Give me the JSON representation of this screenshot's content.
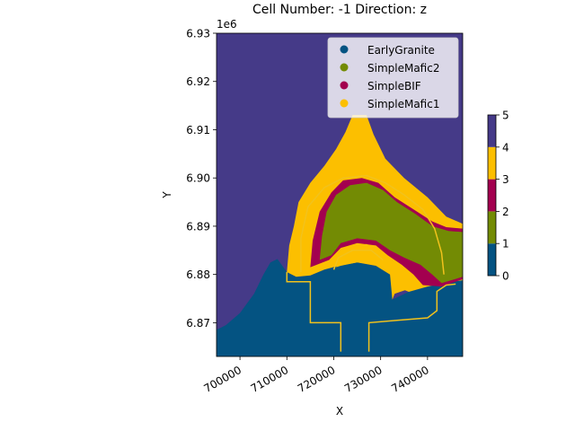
{
  "chart_data": {
    "type": "heatmap",
    "title": "Cell Number: -1 Direction: z",
    "xlabel": "X",
    "ylabel": "Y",
    "y_offset_label": "1e6",
    "xlim": [
      695000,
      747500
    ],
    "ylim": [
      6863000,
      6930000
    ],
    "x_ticks": [
      {
        "value": 700000,
        "label": "700000"
      },
      {
        "value": 710000,
        "label": "710000"
      },
      {
        "value": 720000,
        "label": "720000"
      },
      {
        "value": 730000,
        "label": "730000"
      },
      {
        "value": 740000,
        "label": "740000"
      }
    ],
    "y_ticks": [
      {
        "value": 6870000,
        "label": "6.87"
      },
      {
        "value": 6880000,
        "label": "6.88"
      },
      {
        "value": 6890000,
        "label": "6.89"
      },
      {
        "value": 6900000,
        "label": "6.90"
      },
      {
        "value": 6910000,
        "label": "6.91"
      },
      {
        "value": 6920000,
        "label": "6.92"
      },
      {
        "value": 6930000,
        "label": "6.93"
      }
    ],
    "legend_position": "top-right",
    "legend": [
      {
        "name": "EarlyGranite",
        "color": "#045382"
      },
      {
        "name": "SimpleMafic2",
        "color": "#738b04"
      },
      {
        "name": "SimpleBIF",
        "color": "#a3004f"
      },
      {
        "name": "SimpleMafic1",
        "color": "#fcbf00"
      }
    ],
    "background_unit_color": "#453a88",
    "colorbar": {
      "range": [
        0,
        5
      ],
      "ticks": [
        "0",
        "1",
        "2",
        "3",
        "4",
        "5"
      ],
      "bands": [
        {
          "from": 0,
          "to": 1,
          "color": "#045382"
        },
        {
          "from": 1,
          "to": 2,
          "color": "#738b04"
        },
        {
          "from": 2,
          "to": 3,
          "color": "#a3004f"
        },
        {
          "from": 3,
          "to": 4,
          "color": "#fcbf00"
        },
        {
          "from": 4,
          "to": 5,
          "color": "#453a88"
        }
      ]
    },
    "regions": [
      {
        "name": "EarlyGranite",
        "color": "#045382",
        "points": [
          [
            695000,
            6863000
          ],
          [
            747500,
            6863000
          ],
          [
            747500,
            6878800
          ],
          [
            744000,
            6878300
          ],
          [
            740000,
            6877500
          ],
          [
            736000,
            6876400
          ],
          [
            732500,
            6874800
          ],
          [
            732000,
            6880000
          ],
          [
            729000,
            6881800
          ],
          [
            725000,
            6882500
          ],
          [
            721000,
            6881800
          ],
          [
            718000,
            6881000
          ],
          [
            715000,
            6879800
          ],
          [
            712000,
            6879500
          ],
          [
            710000,
            6880500
          ],
          [
            708000,
            6883200
          ],
          [
            706500,
            6882500
          ],
          [
            705000,
            6880000
          ],
          [
            703000,
            6876000
          ],
          [
            700000,
            6872000
          ],
          [
            697000,
            6869500
          ],
          [
            695000,
            6868500
          ]
        ]
      },
      {
        "name": "SimpleMafic1",
        "color": "#fcbf00",
        "points": [
          [
            710000,
            6880500
          ],
          [
            710500,
            6886000
          ],
          [
            711500,
            6890000
          ],
          [
            712500,
            6895000
          ],
          [
            715000,
            6899000
          ],
          [
            718000,
            6902500
          ],
          [
            720500,
            6906000
          ],
          [
            722500,
            6909500
          ],
          [
            724000,
            6913000
          ],
          [
            727000,
            6913000
          ],
          [
            728500,
            6909000
          ],
          [
            731000,
            6904000
          ],
          [
            735000,
            6900000
          ],
          [
            740000,
            6896000
          ],
          [
            744000,
            6892000
          ],
          [
            747500,
            6890500
          ],
          [
            747500,
            6878800
          ],
          [
            744000,
            6878300
          ],
          [
            740000,
            6877500
          ],
          [
            736000,
            6876400
          ],
          [
            734500,
            6877000
          ],
          [
            733000,
            6876000
          ],
          [
            732500,
            6874800
          ],
          [
            732000,
            6880000
          ],
          [
            729000,
            6881800
          ],
          [
            725000,
            6882500
          ],
          [
            721000,
            6881800
          ],
          [
            718000,
            6881000
          ],
          [
            715000,
            6879800
          ],
          [
            712000,
            6879500
          ]
        ]
      },
      {
        "name": "SimpleBIF",
        "color": "#a3004f",
        "points": [
          [
            715000,
            6881500
          ],
          [
            715500,
            6887000
          ],
          [
            717000,
            6893000
          ],
          [
            719500,
            6897000
          ],
          [
            722000,
            6899500
          ],
          [
            726000,
            6900000
          ],
          [
            729500,
            6899000
          ],
          [
            733000,
            6896000
          ],
          [
            737000,
            6893500
          ],
          [
            741000,
            6891000
          ],
          [
            744000,
            6889800
          ],
          [
            747500,
            6889500
          ],
          [
            747500,
            6879000
          ],
          [
            743000,
            6877500
          ],
          [
            739000,
            6877800
          ],
          [
            737000,
            6880000
          ],
          [
            734500,
            6882000
          ],
          [
            731500,
            6884000
          ],
          [
            729000,
            6886000
          ],
          [
            725000,
            6886500
          ],
          [
            721500,
            6885500
          ],
          [
            719000,
            6883000
          ]
        ]
      },
      {
        "name": "SimpleMafic2",
        "color": "#738b04",
        "points": [
          [
            717000,
            6883000
          ],
          [
            717500,
            6888000
          ],
          [
            718500,
            6893000
          ],
          [
            720500,
            6896500
          ],
          [
            723500,
            6898500
          ],
          [
            727000,
            6899000
          ],
          [
            730500,
            6897500
          ],
          [
            733500,
            6895000
          ],
          [
            737500,
            6892500
          ],
          [
            741000,
            6890000
          ],
          [
            744500,
            6889000
          ],
          [
            747500,
            6888800
          ],
          [
            747500,
            6879500
          ],
          [
            743000,
            6878200
          ],
          [
            741000,
            6880000
          ],
          [
            738500,
            6882000
          ],
          [
            735000,
            6883500
          ],
          [
            732000,
            6885000
          ],
          [
            729000,
            6887000
          ],
          [
            725000,
            6887500
          ],
          [
            721500,
            6886500
          ],
          [
            719500,
            6884000
          ]
        ]
      },
      {
        "name": "SimpleMafic1",
        "color": "#fcbf00",
        "points": [
          [
            720500,
            6881500
          ],
          [
            721500,
            6884500
          ],
          [
            724000,
            6886000
          ],
          [
            727000,
            6886300
          ],
          [
            729500,
            6885200
          ],
          [
            730500,
            6883500
          ],
          [
            729000,
            6882000
          ],
          [
            725000,
            6882500
          ],
          [
            721500,
            6881800
          ]
        ]
      },
      {
        "name": "SimpleMafic1",
        "color": "#fcbf00",
        "points": [
          [
            733000,
            6876000
          ],
          [
            732800,
            6880000
          ],
          [
            734000,
            6882000
          ],
          [
            736000,
            6880500
          ],
          [
            738000,
            6878600
          ],
          [
            736000,
            6877000
          ]
        ]
      }
    ],
    "contour_lines": [
      {
        "color": "#f2c21c",
        "points": [
          [
            710000,
            6880500
          ],
          [
            710000,
            6878500
          ],
          [
            715000,
            6878500
          ],
          [
            715000,
            6870000
          ],
          [
            721500,
            6870000
          ],
          [
            721500,
            6864000
          ]
        ]
      },
      {
        "color": "#f2c21c",
        "points": [
          [
            727500,
            6864000
          ],
          [
            727500,
            6870000
          ],
          [
            733500,
            6870500
          ],
          [
            740000,
            6871000
          ],
          [
            742000,
            6872500
          ],
          [
            742000,
            6876500
          ],
          [
            744000,
            6877800
          ],
          [
            746000,
            6878000
          ]
        ]
      },
      {
        "color": "#f2c21c",
        "points": [
          [
            713000,
            6880500
          ],
          [
            713000,
            6887500
          ],
          [
            714500,
            6894000
          ],
          [
            718000,
            6898000
          ],
          [
            722000,
            6900000
          ],
          [
            727000,
            6900500
          ],
          [
            731000,
            6899000
          ],
          [
            735000,
            6896500
          ],
          [
            739000,
            6893500
          ],
          [
            741500,
            6889500
          ],
          [
            743000,
            6884500
          ],
          [
            743500,
            6880000
          ]
        ]
      },
      {
        "color": "#f2c21c",
        "points": [
          [
            720000,
            6881000
          ],
          [
            721000,
            6883500
          ],
          [
            724000,
            6885000
          ],
          [
            728000,
            6885000
          ],
          [
            730500,
            6883000
          ]
        ]
      }
    ]
  }
}
